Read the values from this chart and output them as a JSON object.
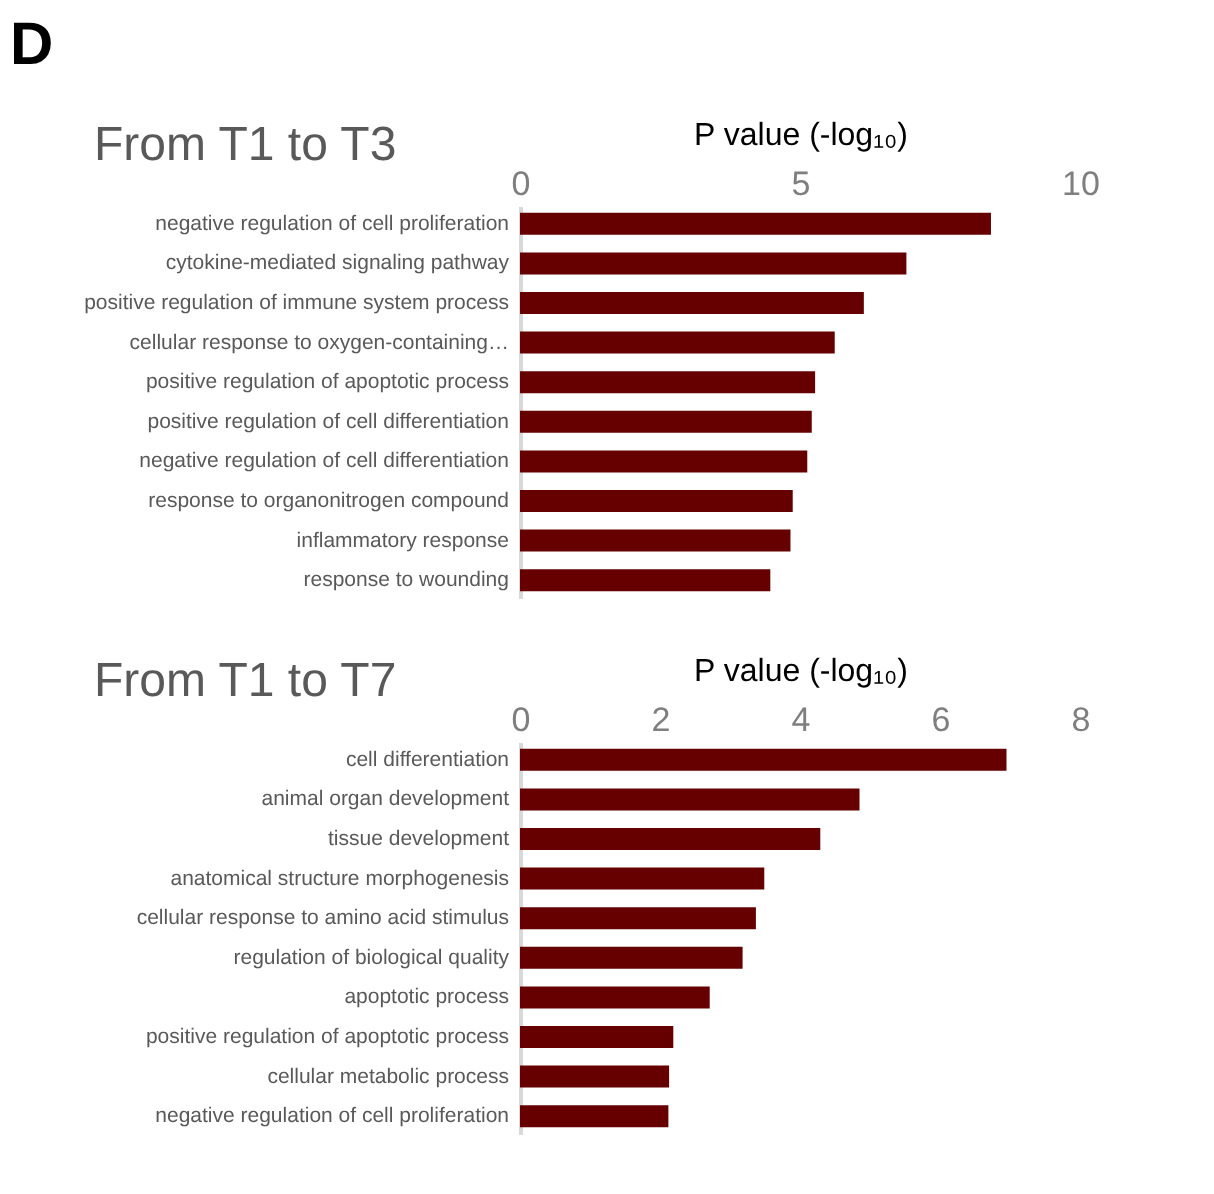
{
  "chart_data": [
    {
      "type": "bar",
      "orientation": "horizontal",
      "title": "From T1 to T3",
      "xlabel": "P value (-log₁₀)",
      "annotations": [
        "D"
      ],
      "categories": [
        "negative regulation of cell proliferation",
        "cytokine-mediated signaling pathway",
        "positive regulation of immune system process",
        "cellular response to oxygen-containing…",
        "positive regulation of apoptotic process",
        "positive regulation of cell differentiation",
        "negative regulation of cell differentiation",
        "response to organonitrogen compound",
        "inflammatory response",
        "response to wounding"
      ],
      "values": [
        8.41,
        6.9,
        6.14,
        5.62,
        5.27,
        5.21,
        5.13,
        4.87,
        4.83,
        4.47
      ],
      "color": "#660000",
      "xlim": [
        0,
        10
      ],
      "xticks": [
        0,
        5,
        10
      ],
      "grid": false
    },
    {
      "type": "bar",
      "orientation": "horizontal",
      "title": "From T1 to T7",
      "xlabel": "P value (-log₁₀)",
      "categories": [
        "cell differentiation",
        "animal organ development",
        "tissue development",
        "anatomical structure morphogenesis",
        "cellular response to amino acid stimulus",
        "regulation of biological quality",
        "apoptotic process",
        "positive regulation of apoptotic process",
        "cellular metabolic process",
        "negative regulation of cell proliferation"
      ],
      "values": [
        6.95,
        4.85,
        4.29,
        3.49,
        3.37,
        3.18,
        2.71,
        2.19,
        2.13,
        2.12
      ],
      "color": "#660000",
      "xlim": [
        0,
        8
      ],
      "xticks": [
        0,
        2,
        4,
        6,
        8
      ],
      "grid": false
    }
  ]
}
